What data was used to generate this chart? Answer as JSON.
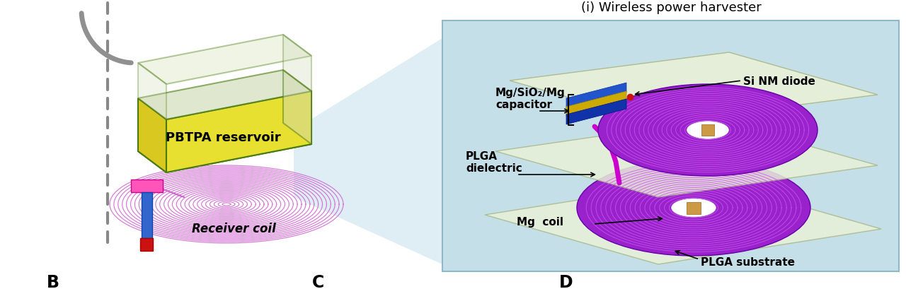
{
  "title_wireless": "(i) Wireless power harvester",
  "label_pbtpa": "PBTPA reservoir",
  "label_receiver": "Receiver coil",
  "label_capacitor": "Mg/SiO₂/Mg\ncapacitor",
  "label_diode": "Si NM diode",
  "label_plga_dielectric": "PLGA\ndielectric",
  "label_mg_coil": "Mg  coil",
  "label_plga_substrate": "PLGA substrate",
  "label_B": "B",
  "label_C": "C",
  "label_D": "D",
  "bg_color": "#ffffff",
  "panel_bg": "#c5dfe8",
  "coil_color_receiver": "#d060d0",
  "coil_color_mg": "#8800bb",
  "reservoir_yellow": "#e8e030",
  "reservoir_edge": "#4a7a10",
  "reservoir_glass": "#c8d8a8",
  "dashed_color": "#888888",
  "font_size_label": 11,
  "font_size_title": 13,
  "font_size_panel_label": 17,
  "fig_width": 12.8,
  "fig_height": 4.1
}
